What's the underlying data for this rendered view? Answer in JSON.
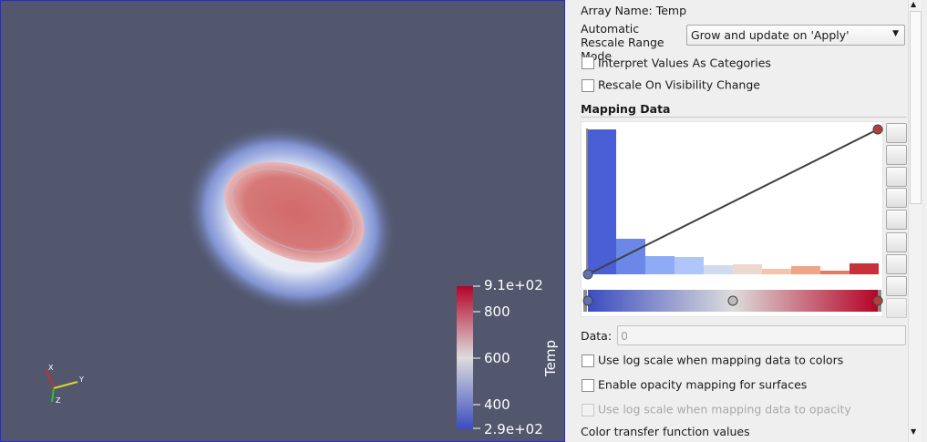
{
  "render_view": {
    "legend": {
      "title": "Temp",
      "labels": [
        "9.1e+02",
        "800",
        "600",
        "400",
        "2.9e+02"
      ]
    },
    "axes": {
      "x": "X",
      "y": "Y",
      "z": "Z"
    }
  },
  "properties": {
    "array_name": "Array Name: Temp",
    "rescale_mode": {
      "label": "Automatic Rescale Range Mode",
      "value": "Grow and update on 'Apply'"
    },
    "checkboxes_top": [
      "Interpret Values As Categories",
      "Rescale On Visibility Change"
    ],
    "section": "Mapping Data",
    "data_label": "Data:",
    "data_value": "0",
    "checkboxes_bottom": [
      "Use log scale when mapping data to colors",
      "Enable opacity mapping for surfaces",
      "Use log scale when mapping data to opacity"
    ],
    "footer": "Color transfer function values"
  }
}
